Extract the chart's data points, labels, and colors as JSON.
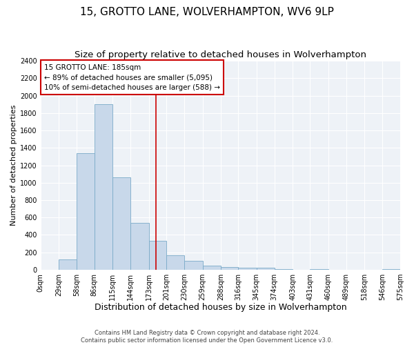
{
  "title": "15, GROTTO LANE, WOLVERHAMPTON, WV6 9LP",
  "subtitle": "Size of property relative to detached houses in Wolverhampton",
  "xlabel": "Distribution of detached houses by size in Wolverhampton",
  "ylabel": "Number of detached properties",
  "footer_line1": "Contains HM Land Registry data © Crown copyright and database right 2024.",
  "footer_line2": "Contains public sector information licensed under the Open Government Licence v3.0.",
  "bar_color": "#c8d8ea",
  "bar_edge_color": "#7aaac8",
  "annotation_text_line1": "15 GROTTO LANE: 185sqm",
  "annotation_text_line2": "← 89% of detached houses are smaller (5,095)",
  "annotation_text_line3": "10% of semi-detached houses are larger (588) →",
  "annotation_box_color": "#ffffff",
  "annotation_box_edge_color": "#cc0000",
  "vline_color": "#cc0000",
  "vline_x": 185,
  "bin_edges": [
    0,
    29,
    58,
    86,
    115,
    144,
    173,
    201,
    230,
    259,
    288,
    316,
    345,
    374,
    403,
    431,
    460,
    489,
    518,
    546,
    575
  ],
  "bin_labels": [
    "0sqm",
    "29sqm",
    "58sqm",
    "86sqm",
    "115sqm",
    "144sqm",
    "173sqm",
    "201sqm",
    "230sqm",
    "259sqm",
    "288sqm",
    "316sqm",
    "345sqm",
    "374sqm",
    "403sqm",
    "431sqm",
    "460sqm",
    "489sqm",
    "518sqm",
    "546sqm",
    "575sqm"
  ],
  "bar_heights": [
    0,
    120,
    1340,
    1900,
    1060,
    540,
    330,
    165,
    105,
    50,
    30,
    20,
    20,
    10,
    0,
    10,
    0,
    0,
    0,
    10
  ],
  "ylim": [
    0,
    2400
  ],
  "yticks": [
    0,
    200,
    400,
    600,
    800,
    1000,
    1200,
    1400,
    1600,
    1800,
    2000,
    2200,
    2400
  ],
  "background_color": "#eef2f7",
  "grid_color": "#ffffff",
  "fig_bg_color": "#ffffff",
  "title_fontsize": 11,
  "subtitle_fontsize": 9.5,
  "xlabel_fontsize": 9,
  "ylabel_fontsize": 8,
  "tick_fontsize": 7,
  "annotation_fontsize": 7.5,
  "footer_fontsize": 6
}
